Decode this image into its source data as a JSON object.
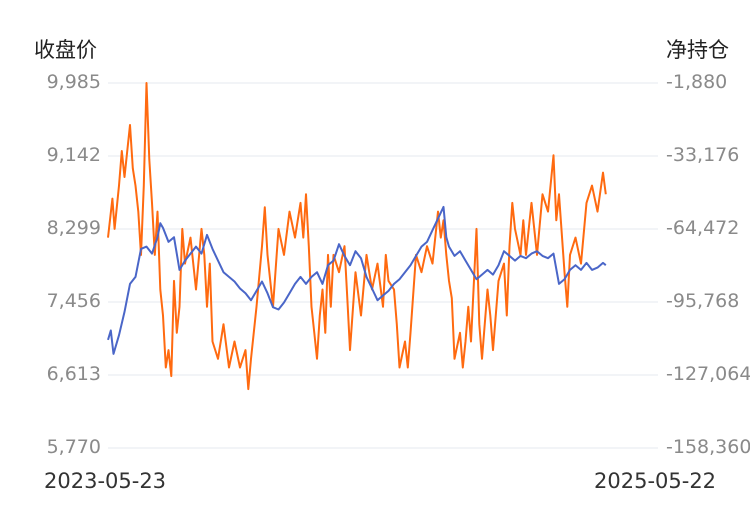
{
  "chart_data": {
    "type": "line",
    "left_axis_title": "收盘价",
    "right_axis_title": "净持仓",
    "x_start_label": "2023-05-23",
    "x_end_label": "2025-05-22",
    "y_left_ticks": [
      "9,985",
      "9,142",
      "8,299",
      "7,456",
      "6,613",
      "5,770"
    ],
    "y_right_ticks": [
      "-1,880",
      "-33,176",
      "-64,472",
      "-95,768",
      "-127,064",
      "-158,360"
    ],
    "y_left_range": [
      5770,
      9985
    ],
    "y_right_range": [
      -158360,
      -1880
    ],
    "grid": true,
    "series": [
      {
        "axis": "left",
        "color": "#ff6a10",
        "points": [
          [
            0,
            8200
          ],
          [
            0.008,
            8650
          ],
          [
            0.012,
            8300
          ],
          [
            0.02,
            8800
          ],
          [
            0.025,
            9200
          ],
          [
            0.03,
            8900
          ],
          [
            0.04,
            9500
          ],
          [
            0.045,
            9000
          ],
          [
            0.05,
            8800
          ],
          [
            0.055,
            8500
          ],
          [
            0.06,
            8000
          ],
          [
            0.065,
            8800
          ],
          [
            0.07,
            9985
          ],
          [
            0.075,
            9100
          ],
          [
            0.08,
            8600
          ],
          [
            0.085,
            8000
          ],
          [
            0.09,
            8500
          ],
          [
            0.095,
            7600
          ],
          [
            0.1,
            7300
          ],
          [
            0.105,
            6700
          ],
          [
            0.11,
            6900
          ],
          [
            0.115,
            6600
          ],
          [
            0.12,
            7700
          ],
          [
            0.125,
            7100
          ],
          [
            0.13,
            7400
          ],
          [
            0.135,
            8300
          ],
          [
            0.14,
            7900
          ],
          [
            0.15,
            8200
          ],
          [
            0.16,
            7600
          ],
          [
            0.17,
            8300
          ],
          [
            0.175,
            8000
          ],
          [
            0.18,
            7400
          ],
          [
            0.185,
            7900
          ],
          [
            0.19,
            7000
          ],
          [
            0.2,
            6800
          ],
          [
            0.21,
            7200
          ],
          [
            0.22,
            6700
          ],
          [
            0.23,
            7000
          ],
          [
            0.24,
            6700
          ],
          [
            0.25,
            6900
          ],
          [
            0.255,
            6450
          ],
          [
            0.26,
            6800
          ],
          [
            0.27,
            7400
          ],
          [
            0.28,
            8100
          ],
          [
            0.285,
            8550
          ],
          [
            0.29,
            8000
          ],
          [
            0.3,
            7400
          ],
          [
            0.31,
            8300
          ],
          [
            0.32,
            8000
          ],
          [
            0.33,
            8500
          ],
          [
            0.34,
            8200
          ],
          [
            0.35,
            8600
          ],
          [
            0.355,
            8200
          ],
          [
            0.36,
            8700
          ],
          [
            0.365,
            8100
          ],
          [
            0.37,
            7400
          ],
          [
            0.375,
            7100
          ],
          [
            0.38,
            6800
          ],
          [
            0.385,
            7300
          ],
          [
            0.39,
            7600
          ],
          [
            0.395,
            7100
          ],
          [
            0.4,
            8000
          ],
          [
            0.405,
            7400
          ],
          [
            0.41,
            8000
          ],
          [
            0.42,
            7800
          ],
          [
            0.43,
            8100
          ],
          [
            0.435,
            7500
          ],
          [
            0.44,
            6900
          ],
          [
            0.45,
            7800
          ],
          [
            0.46,
            7300
          ],
          [
            0.47,
            8000
          ],
          [
            0.48,
            7600
          ],
          [
            0.49,
            7900
          ],
          [
            0.5,
            7400
          ],
          [
            0.505,
            8000
          ],
          [
            0.51,
            7700
          ],
          [
            0.52,
            7600
          ],
          [
            0.525,
            7200
          ],
          [
            0.53,
            6700
          ],
          [
            0.54,
            7000
          ],
          [
            0.545,
            6700
          ],
          [
            0.55,
            7100
          ],
          [
            0.56,
            8000
          ],
          [
            0.57,
            7800
          ],
          [
            0.58,
            8100
          ],
          [
            0.59,
            7900
          ],
          [
            0.6,
            8500
          ],
          [
            0.605,
            8200
          ],
          [
            0.61,
            8400
          ],
          [
            0.615,
            8000
          ],
          [
            0.62,
            7700
          ],
          [
            0.625,
            7500
          ],
          [
            0.63,
            6800
          ],
          [
            0.64,
            7100
          ],
          [
            0.645,
            6700
          ],
          [
            0.65,
            7000
          ],
          [
            0.655,
            7400
          ],
          [
            0.66,
            7000
          ],
          [
            0.67,
            8300
          ],
          [
            0.675,
            7200
          ],
          [
            0.68,
            6800
          ],
          [
            0.69,
            7600
          ],
          [
            0.695,
            7300
          ],
          [
            0.7,
            6900
          ],
          [
            0.71,
            7700
          ],
          [
            0.72,
            7900
          ],
          [
            0.725,
            7300
          ],
          [
            0.73,
            8100
          ],
          [
            0.735,
            8600
          ],
          [
            0.74,
            8300
          ],
          [
            0.75,
            8000
          ],
          [
            0.755,
            8400
          ],
          [
            0.76,
            8000
          ],
          [
            0.77,
            8600
          ],
          [
            0.78,
            8000
          ],
          [
            0.79,
            8700
          ],
          [
            0.8,
            8500
          ],
          [
            0.81,
            9150
          ],
          [
            0.815,
            8400
          ],
          [
            0.82,
            8700
          ],
          [
            0.83,
            7800
          ],
          [
            0.835,
            7400
          ],
          [
            0.84,
            8000
          ],
          [
            0.85,
            8200
          ],
          [
            0.86,
            7900
          ],
          [
            0.87,
            8600
          ],
          [
            0.88,
            8800
          ],
          [
            0.89,
            8500
          ],
          [
            0.9,
            8950
          ],
          [
            0.905,
            8700
          ]
        ]
      },
      {
        "axis": "right",
        "color": "#4a66c8",
        "points": [
          [
            0,
            -112000
          ],
          [
            0.005,
            -108000
          ],
          [
            0.01,
            -118000
          ],
          [
            0.02,
            -110000
          ],
          [
            0.03,
            -100000
          ],
          [
            0.04,
            -88000
          ],
          [
            0.05,
            -85000
          ],
          [
            0.06,
            -73000
          ],
          [
            0.07,
            -72000
          ],
          [
            0.08,
            -75000
          ],
          [
            0.09,
            -68000
          ],
          [
            0.095,
            -62000
          ],
          [
            0.1,
            -64000
          ],
          [
            0.11,
            -70000
          ],
          [
            0.12,
            -68000
          ],
          [
            0.13,
            -82000
          ],
          [
            0.14,
            -78000
          ],
          [
            0.15,
            -75000
          ],
          [
            0.16,
            -72000
          ],
          [
            0.17,
            -75000
          ],
          [
            0.18,
            -67000
          ],
          [
            0.19,
            -73000
          ],
          [
            0.2,
            -78000
          ],
          [
            0.21,
            -83000
          ],
          [
            0.22,
            -85000
          ],
          [
            0.23,
            -87000
          ],
          [
            0.24,
            -90000
          ],
          [
            0.25,
            -92000
          ],
          [
            0.26,
            -95000
          ],
          [
            0.27,
            -91000
          ],
          [
            0.28,
            -87000
          ],
          [
            0.29,
            -92000
          ],
          [
            0.3,
            -98000
          ],
          [
            0.31,
            -99000
          ],
          [
            0.32,
            -96000
          ],
          [
            0.33,
            -92000
          ],
          [
            0.34,
            -88000
          ],
          [
            0.35,
            -85000
          ],
          [
            0.36,
            -88000
          ],
          [
            0.37,
            -85000
          ],
          [
            0.38,
            -83000
          ],
          [
            0.39,
            -88000
          ],
          [
            0.4,
            -80000
          ],
          [
            0.41,
            -78000
          ],
          [
            0.42,
            -71000
          ],
          [
            0.43,
            -76000
          ],
          [
            0.44,
            -80000
          ],
          [
            0.45,
            -74000
          ],
          [
            0.46,
            -77000
          ],
          [
            0.47,
            -85000
          ],
          [
            0.48,
            -90000
          ],
          [
            0.49,
            -95000
          ],
          [
            0.5,
            -93000
          ],
          [
            0.51,
            -91000
          ],
          [
            0.52,
            -88000
          ],
          [
            0.53,
            -86000
          ],
          [
            0.54,
            -83000
          ],
          [
            0.55,
            -80000
          ],
          [
            0.56,
            -76000
          ],
          [
            0.57,
            -72000
          ],
          [
            0.58,
            -70000
          ],
          [
            0.59,
            -65000
          ],
          [
            0.6,
            -60000
          ],
          [
            0.61,
            -55000
          ],
          [
            0.615,
            -68000
          ],
          [
            0.62,
            -72000
          ],
          [
            0.63,
            -76000
          ],
          [
            0.64,
            -74000
          ],
          [
            0.65,
            -78000
          ],
          [
            0.66,
            -82000
          ],
          [
            0.67,
            -86000
          ],
          [
            0.68,
            -84000
          ],
          [
            0.69,
            -82000
          ],
          [
            0.7,
            -84000
          ],
          [
            0.71,
            -80000
          ],
          [
            0.72,
            -74000
          ],
          [
            0.73,
            -76000
          ],
          [
            0.74,
            -78000
          ],
          [
            0.75,
            -76000
          ],
          [
            0.76,
            -77000
          ],
          [
            0.77,
            -75000
          ],
          [
            0.78,
            -74000
          ],
          [
            0.79,
            -76000
          ],
          [
            0.8,
            -77000
          ],
          [
            0.81,
            -75000
          ],
          [
            0.82,
            -88000
          ],
          [
            0.83,
            -86000
          ],
          [
            0.84,
            -82000
          ],
          [
            0.85,
            -80000
          ],
          [
            0.86,
            -82000
          ],
          [
            0.87,
            -79000
          ],
          [
            0.88,
            -82000
          ],
          [
            0.89,
            -81000
          ],
          [
            0.9,
            -79000
          ],
          [
            0.905,
            -80000
          ]
        ]
      }
    ]
  }
}
